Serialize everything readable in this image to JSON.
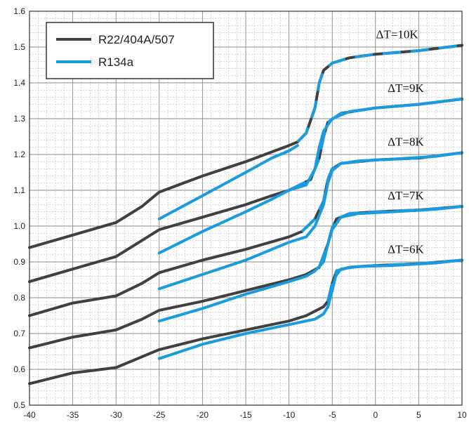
{
  "chart_data": {
    "type": "line",
    "title": "",
    "xlabel": "",
    "ylabel": "",
    "xlim": [
      -40,
      10
    ],
    "ylim": [
      0.5,
      1.6
    ],
    "xticks": [
      -40,
      -35,
      -30,
      -25,
      -20,
      -15,
      -10,
      -5,
      0,
      5,
      10
    ],
    "yticks": [
      0.5,
      0.6,
      0.7,
      0.8,
      0.9,
      1.0,
      1.1,
      1.2,
      1.3,
      1.4,
      1.5,
      1.6
    ],
    "grid": true,
    "legend": {
      "position": "top-left",
      "entries": [
        {
          "label": "R22/404A/507",
          "color": "#404040"
        },
        {
          "label": "R134a",
          "color": "#1a9be0"
        }
      ]
    },
    "curve_labels": [
      {
        "text": "ΔT=10K",
        "x": 2.5,
        "y": 1.525
      },
      {
        "text": "ΔT=9K",
        "x": 3.5,
        "y": 1.375
      },
      {
        "text": "ΔT=8K",
        "x": 3.5,
        "y": 1.225
      },
      {
        "text": "ΔT=7K",
        "x": 3.5,
        "y": 1.075
      },
      {
        "text": "ΔT=6K",
        "x": 3.5,
        "y": 0.925
      }
    ],
    "series": [
      {
        "name": "R22/404A/507",
        "dt": "ΔT=6K",
        "color": "#404040",
        "points": [
          [
            -40,
            0.56
          ],
          [
            -35,
            0.59
          ],
          [
            -30,
            0.605
          ],
          [
            -25,
            0.655
          ],
          [
            -20,
            0.685
          ],
          [
            -15,
            0.71
          ],
          [
            -10,
            0.735
          ],
          [
            -8,
            0.75
          ],
          [
            -6,
            0.775
          ],
          [
            -5.5,
            0.79
          ]
        ]
      },
      {
        "name": "R22/404A/507",
        "dt": "ΔT=7K",
        "color": "#404040",
        "points": [
          [
            -40,
            0.66
          ],
          [
            -35,
            0.69
          ],
          [
            -30,
            0.71
          ],
          [
            -27,
            0.74
          ],
          [
            -25,
            0.765
          ],
          [
            -20,
            0.79
          ],
          [
            -15,
            0.82
          ],
          [
            -10,
            0.85
          ],
          [
            -8,
            0.865
          ],
          [
            -6.5,
            0.885
          ]
        ]
      },
      {
        "name": "R22/404A/507",
        "dt": "ΔT=8K",
        "color": "#404040",
        "points": [
          [
            -40,
            0.75
          ],
          [
            -35,
            0.785
          ],
          [
            -30,
            0.805
          ],
          [
            -27,
            0.84
          ],
          [
            -25,
            0.87
          ],
          [
            -20,
            0.905
          ],
          [
            -15,
            0.935
          ],
          [
            -10,
            0.97
          ],
          [
            -8.5,
            0.985
          ]
        ]
      },
      {
        "name": "R22/404A/507",
        "dt": "ΔT=9K",
        "color": "#404040",
        "points": [
          [
            -40,
            0.845
          ],
          [
            -35,
            0.88
          ],
          [
            -30,
            0.915
          ],
          [
            -27,
            0.96
          ],
          [
            -25,
            0.99
          ],
          [
            -20,
            1.025
          ],
          [
            -15,
            1.06
          ],
          [
            -12,
            1.085
          ],
          [
            -10,
            1.1
          ]
        ]
      },
      {
        "name": "R22/404A/507",
        "dt": "ΔT=10K",
        "color": "#404040",
        "points": [
          [
            -40,
            0.94
          ],
          [
            -35,
            0.975
          ],
          [
            -30,
            1.01
          ],
          [
            -27,
            1.055
          ],
          [
            -25,
            1.095
          ],
          [
            -20,
            1.14
          ],
          [
            -15,
            1.18
          ],
          [
            -10,
            1.225
          ],
          [
            -9,
            1.235
          ]
        ]
      },
      {
        "name": "R22/404A/507 / R134a",
        "dt": "ΔT=6K",
        "color": "#404040",
        "points": [
          [
            -5.5,
            0.79
          ],
          [
            -5,
            0.84
          ],
          [
            -4.5,
            0.875
          ],
          [
            -3,
            0.885
          ],
          [
            0,
            0.89
          ],
          [
            5,
            0.895
          ],
          [
            10,
            0.905
          ]
        ]
      },
      {
        "name": "R22/404A/507 / R134a",
        "dt": "ΔT=7K",
        "color": "#404040",
        "points": [
          [
            -6.5,
            0.885
          ],
          [
            -5.5,
            0.95
          ],
          [
            -5,
            0.995
          ],
          [
            -4.5,
            1.02
          ],
          [
            -3,
            1.035
          ],
          [
            0,
            1.04
          ],
          [
            5,
            1.045
          ],
          [
            10,
            1.055
          ]
        ]
      },
      {
        "name": "R22/404A/507 / R134a",
        "dt": "ΔT=8K",
        "color": "#404040",
        "points": [
          [
            -8.5,
            0.985
          ],
          [
            -7,
            1.02
          ],
          [
            -6,
            1.07
          ],
          [
            -5.5,
            1.13
          ],
          [
            -5,
            1.16
          ],
          [
            -4,
            1.175
          ],
          [
            0,
            1.185
          ],
          [
            5,
            1.19
          ],
          [
            10,
            1.205
          ]
        ]
      },
      {
        "name": "R22/404A/507 / R134a",
        "dt": "ΔT=9K",
        "color": "#404040",
        "points": [
          [
            -10,
            1.1
          ],
          [
            -7.5,
            1.13
          ],
          [
            -6.5,
            1.19
          ],
          [
            -6,
            1.25
          ],
          [
            -5.5,
            1.29
          ],
          [
            -4,
            1.315
          ],
          [
            0,
            1.33
          ],
          [
            5,
            1.34
          ],
          [
            10,
            1.355
          ]
        ]
      },
      {
        "name": "R22/404A/507 / R134a",
        "dt": "ΔT=10K",
        "color": "#404040",
        "points": [
          [
            -9,
            1.235
          ],
          [
            -8,
            1.26
          ],
          [
            -7,
            1.33
          ],
          [
            -6.5,
            1.4
          ],
          [
            -6,
            1.435
          ],
          [
            -5,
            1.455
          ],
          [
            -3,
            1.47
          ],
          [
            0,
            1.48
          ],
          [
            5,
            1.49
          ],
          [
            10,
            1.505
          ]
        ]
      },
      {
        "name": "R134a",
        "dt": "ΔT=6K",
        "color": "#1a9be0",
        "points": [
          [
            -25,
            0.63
          ],
          [
            -20,
            0.67
          ],
          [
            -15,
            0.7
          ],
          [
            -10,
            0.725
          ],
          [
            -7,
            0.74
          ],
          [
            -6,
            0.755
          ],
          [
            -5.5,
            0.775
          ],
          [
            -5,
            0.82
          ],
          [
            -4.6,
            0.86
          ],
          [
            -4,
            0.88
          ],
          [
            -2,
            0.887
          ],
          [
            2,
            0.89
          ],
          [
            7,
            0.897
          ],
          [
            10,
            0.905
          ]
        ]
      },
      {
        "name": "R134a",
        "dt": "ΔT=7K",
        "color": "#1a9be0",
        "points": [
          [
            -25,
            0.735
          ],
          [
            -20,
            0.77
          ],
          [
            -15,
            0.81
          ],
          [
            -10,
            0.845
          ],
          [
            -8,
            0.86
          ],
          [
            -7,
            0.875
          ],
          [
            -6,
            0.9
          ],
          [
            -5.5,
            0.95
          ],
          [
            -5,
            0.99
          ],
          [
            -4,
            1.025
          ],
          [
            -2,
            1.035
          ],
          [
            2,
            1.04
          ],
          [
            7,
            1.047
          ],
          [
            10,
            1.055
          ]
        ]
      },
      {
        "name": "R134a",
        "dt": "ΔT=8K",
        "color": "#1a9be0",
        "points": [
          [
            -25,
            0.825
          ],
          [
            -20,
            0.865
          ],
          [
            -15,
            0.905
          ],
          [
            -10,
            0.955
          ],
          [
            -8,
            0.97
          ],
          [
            -7,
            1.0
          ],
          [
            -6,
            1.06
          ],
          [
            -5.5,
            1.12
          ],
          [
            -5,
            1.155
          ],
          [
            -4,
            1.175
          ],
          [
            -2,
            1.182
          ],
          [
            2,
            1.187
          ],
          [
            7,
            1.195
          ],
          [
            10,
            1.205
          ]
        ]
      },
      {
        "name": "R134a",
        "dt": "ΔT=9K",
        "color": "#1a9be0",
        "points": [
          [
            -25,
            0.925
          ],
          [
            -20,
            0.985
          ],
          [
            -15,
            1.04
          ],
          [
            -12,
            1.075
          ],
          [
            -10,
            1.1
          ],
          [
            -8,
            1.115
          ],
          [
            -7,
            1.16
          ],
          [
            -6.5,
            1.22
          ],
          [
            -6,
            1.265
          ],
          [
            -5,
            1.3
          ],
          [
            -3,
            1.32
          ],
          [
            0,
            1.33
          ],
          [
            5,
            1.34
          ],
          [
            10,
            1.355
          ]
        ]
      },
      {
        "name": "R134a",
        "dt": "ΔT=10K",
        "color": "#1a9be0",
        "points": [
          [
            -25,
            1.02
          ],
          [
            -20,
            1.085
          ],
          [
            -15,
            1.15
          ],
          [
            -12,
            1.19
          ],
          [
            -10,
            1.21
          ],
          [
            -9,
            1.225
          ]
        ]
      }
    ]
  }
}
